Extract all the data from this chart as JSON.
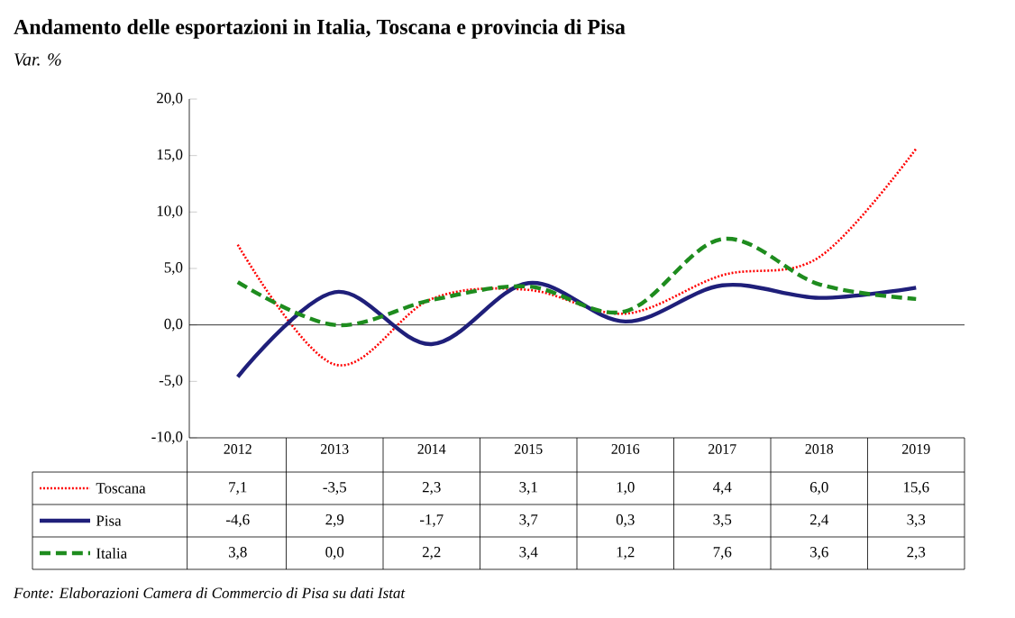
{
  "chart_data": {
    "type": "line",
    "title": "Andamento delle esportazioni in Italia, Toscana e provincia di Pisa",
    "subtitle": "Var. %",
    "categories": [
      "2012",
      "2013",
      "2014",
      "2015",
      "2016",
      "2017",
      "2018",
      "2019"
    ],
    "series": [
      {
        "name": "Toscana",
        "color": "#ff0000",
        "line_style": "dotted",
        "values": [
          7.1,
          -3.5,
          2.3,
          3.1,
          1.0,
          4.4,
          6.0,
          15.6
        ],
        "value_labels": [
          "7,1",
          "-3,5",
          "2,3",
          "3,1",
          "1,0",
          "4,4",
          "6,0",
          "15,6"
        ]
      },
      {
        "name": "Pisa",
        "color": "#1f1f7a",
        "line_style": "solid",
        "values": [
          -4.6,
          2.9,
          -1.7,
          3.7,
          0.3,
          3.5,
          2.4,
          3.3
        ],
        "value_labels": [
          "-4,6",
          "2,9",
          "-1,7",
          "3,7",
          "0,3",
          "3,5",
          "2,4",
          "3,3"
        ]
      },
      {
        "name": "Italia",
        "color": "#1e8c1e",
        "line_style": "dashed",
        "values": [
          3.8,
          0.0,
          2.2,
          3.4,
          1.2,
          7.6,
          3.6,
          2.3
        ],
        "value_labels": [
          "3,8",
          "0,0",
          "2,2",
          "3,4",
          "1,2",
          "7,6",
          "3,6",
          "2,3"
        ]
      }
    ],
    "ylim": [
      -10,
      20
    ],
    "yticks": [
      {
        "value": -10,
        "label": "-10,0"
      },
      {
        "value": -5,
        "label": "-5,0"
      },
      {
        "value": 0,
        "label": "0,0"
      },
      {
        "value": 5,
        "label": "5,0"
      },
      {
        "value": 10,
        "label": "10,0"
      },
      {
        "value": 15,
        "label": "15,0"
      },
      {
        "value": 20,
        "label": "20,0"
      }
    ],
    "ref_lines": [
      {
        "axis": "y",
        "value": 0,
        "color": "#000000"
      }
    ],
    "legend": "bottom",
    "annotations": [
      "Fonte: Elaborazioni Camera di Commercio di Pisa su dati Istat"
    ]
  }
}
